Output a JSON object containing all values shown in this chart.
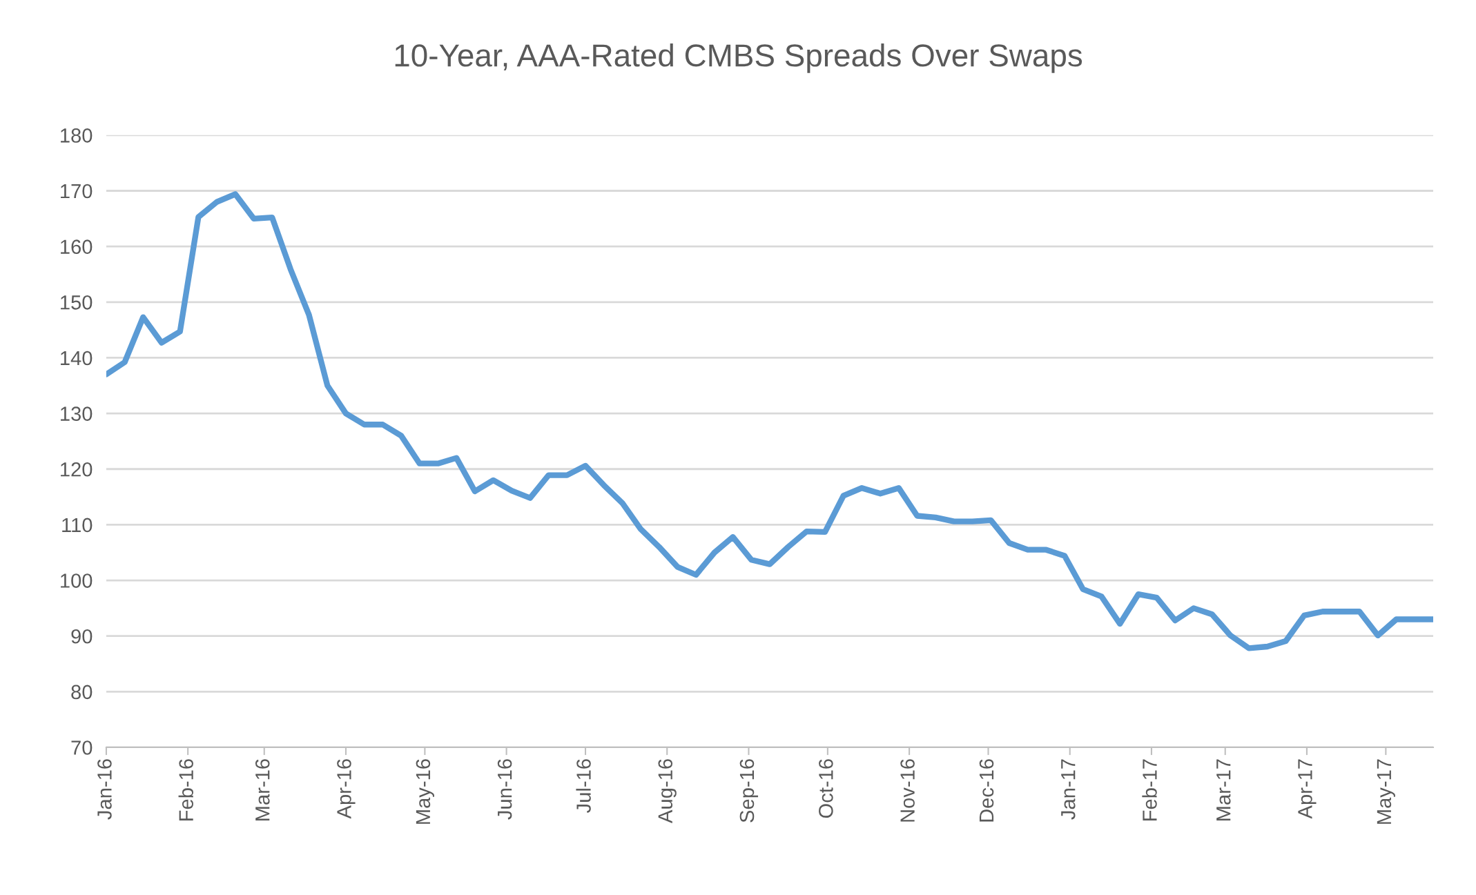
{
  "chart_data": {
    "type": "line",
    "title": "10-Year, AAA-Rated CMBS Spreads Over Swaps",
    "x": [
      "2016-01-01",
      "2016-01-08",
      "2016-01-15",
      "2016-01-22",
      "2016-01-29",
      "2016-02-05",
      "2016-02-12",
      "2016-02-19",
      "2016-02-26",
      "2016-03-04",
      "2016-03-11",
      "2016-03-18",
      "2016-03-25",
      "2016-04-01",
      "2016-04-08",
      "2016-04-15",
      "2016-04-22",
      "2016-04-29",
      "2016-05-06",
      "2016-05-13",
      "2016-05-20",
      "2016-05-27",
      "2016-06-03",
      "2016-06-10",
      "2016-06-17",
      "2016-06-24",
      "2016-07-01",
      "2016-07-08",
      "2016-07-15",
      "2016-07-22",
      "2016-07-29",
      "2016-08-05",
      "2016-08-12",
      "2016-08-19",
      "2016-08-26",
      "2016-09-02",
      "2016-09-09",
      "2016-09-16",
      "2016-09-23",
      "2016-09-30",
      "2016-10-07",
      "2016-10-14",
      "2016-10-21",
      "2016-10-28",
      "2016-11-04",
      "2016-11-11",
      "2016-11-18",
      "2016-11-25",
      "2016-12-02",
      "2016-12-09",
      "2016-12-16",
      "2016-12-23",
      "2016-12-30",
      "2017-01-06",
      "2017-01-13",
      "2017-01-20",
      "2017-01-27",
      "2017-02-03",
      "2017-02-10",
      "2017-02-17",
      "2017-02-24",
      "2017-03-03",
      "2017-03-10",
      "2017-03-17",
      "2017-03-24",
      "2017-03-31",
      "2017-04-07",
      "2017-04-14",
      "2017-04-21",
      "2017-04-28",
      "2017-05-05",
      "2017-05-12",
      "2017-05-19"
    ],
    "series": [
      {
        "color": "#5b9bd5",
        "values": [
          137,
          139.2,
          147.3,
          142.7,
          144.7,
          165.3,
          168,
          169.4,
          165,
          165.2,
          155.9,
          147.7,
          135,
          130,
          128,
          128,
          126,
          121,
          121,
          122,
          116,
          118,
          116.1,
          114.8,
          118.9,
          118.9,
          120.6,
          117.1,
          113.9,
          109.2,
          106,
          102.4,
          101,
          105,
          107.8,
          103.7,
          102.9,
          106,
          108.8,
          108.7,
          115.2,
          116.6,
          115.6,
          116.6,
          111.6,
          111.3,
          110.6,
          110.6,
          110.8,
          106.7,
          105.5,
          105.5,
          104.4,
          98.4,
          97.1,
          92.2,
          97.5,
          96.9,
          92.8,
          95,
          93.9,
          90.1,
          87.8,
          88.1,
          89.1,
          93.7,
          94.4,
          94.4,
          94.4,
          90.1,
          93,
          93,
          93
        ]
      }
    ],
    "xlim": [
      "2016-01-01",
      "2017-05-19"
    ],
    "xticks": [
      {
        "value": "2016-01-01",
        "label": "Jan-16"
      },
      {
        "value": "2016-02-01",
        "label": "Feb-16"
      },
      {
        "value": "2016-03-01",
        "label": "Mar-16"
      },
      {
        "value": "2016-04-01",
        "label": "Apr-16"
      },
      {
        "value": "2016-05-01",
        "label": "May-16"
      },
      {
        "value": "2016-06-01",
        "label": "Jun-16"
      },
      {
        "value": "2016-07-01",
        "label": "Jul-16"
      },
      {
        "value": "2016-08-01",
        "label": "Aug-16"
      },
      {
        "value": "2016-09-01",
        "label": "Sep-16"
      },
      {
        "value": "2016-10-01",
        "label": "Oct-16"
      },
      {
        "value": "2016-11-01",
        "label": "Nov-16"
      },
      {
        "value": "2016-12-01",
        "label": "Dec-16"
      },
      {
        "value": "2017-01-01",
        "label": "Jan-17"
      },
      {
        "value": "2017-02-01",
        "label": "Feb-17"
      },
      {
        "value": "2017-03-01",
        "label": "Mar-17"
      },
      {
        "value": "2017-04-01",
        "label": "Apr-17"
      },
      {
        "value": "2017-05-01",
        "label": "May-17"
      }
    ],
    "ylim": [
      70,
      180
    ],
    "yticks": [
      70,
      80,
      90,
      100,
      110,
      120,
      130,
      140,
      150,
      160,
      170,
      180
    ],
    "grid": "y",
    "legend": false,
    "marker": "none",
    "line_style": "solid"
  }
}
